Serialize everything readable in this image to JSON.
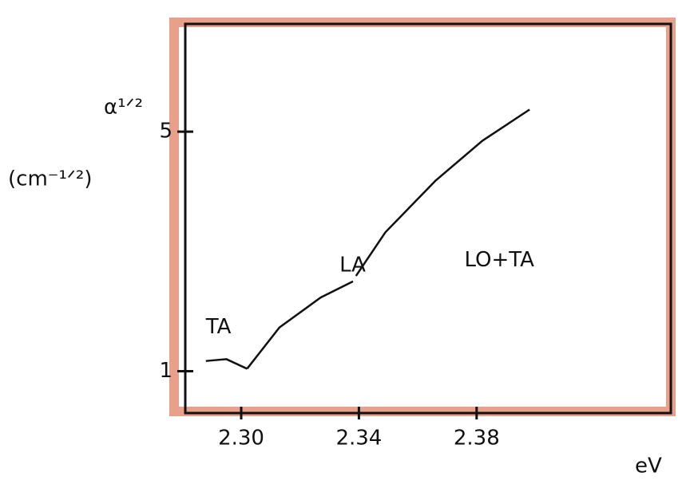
{
  "chart_data": {
    "type": "line",
    "x_label": "eV",
    "y_label": "α¹ᐟ²",
    "y_unit": "(cm⁻¹ᐟ²)",
    "xlim": [
      2.281,
      2.446
    ],
    "ylim": [
      0.3,
      6.8
    ],
    "xticks": [
      {
        "value": 2.3,
        "label": "2.30"
      },
      2.34,
      2.38
    ],
    "yticks": [
      1,
      5
    ],
    "series": [
      {
        "name": "TA",
        "color": "#111111",
        "x": [
          2.288,
          2.295,
          2.302
        ],
        "values": [
          1.17,
          1.2,
          1.04
        ]
      },
      {
        "name": "LA",
        "color": "#111111",
        "x": [
          2.302,
          2.313,
          2.327,
          2.338
        ],
        "values": [
          1.04,
          1.73,
          2.23,
          2.5
        ]
      },
      {
        "name": "LO+TA",
        "color": "#111111",
        "x": [
          2.339,
          2.349,
          2.366,
          2.382,
          2.398
        ],
        "values": [
          2.59,
          3.32,
          4.18,
          4.85,
          5.37
        ]
      }
    ]
  }
}
